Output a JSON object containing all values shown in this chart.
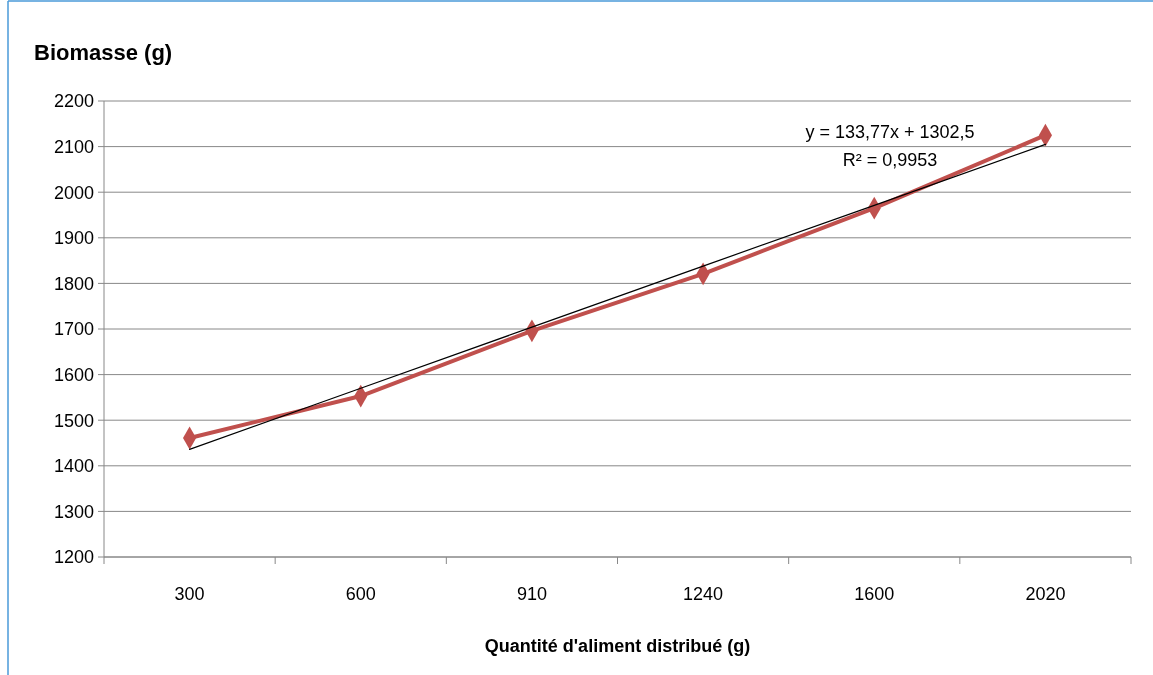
{
  "chart_data": {
    "type": "line",
    "title": "Biomasse (g)",
    "xlabel": "Quantité d'aliment distribué (g)",
    "categories": [
      "300",
      "600",
      "910",
      "1240",
      "1600",
      "2020"
    ],
    "series": [
      {
        "color": "#c0504d",
        "values": [
          1461,
          1553,
          1696,
          1821,
          1965,
          2125
        ],
        "marker": "diamond"
      },
      {
        "color": "#000000",
        "values": [
          1436,
          1570,
          1704,
          1838,
          1971,
          2105
        ],
        "marker": "none"
      }
    ],
    "ylim": [
      1200,
      2200
    ],
    "yticks": [
      1200,
      1300,
      1400,
      1500,
      1600,
      1700,
      1800,
      1900,
      2000,
      2100,
      2200
    ],
    "grid": "y",
    "annotations": [
      "y = 133,77x + 1302,5",
      "R² = 0,9953"
    ]
  }
}
